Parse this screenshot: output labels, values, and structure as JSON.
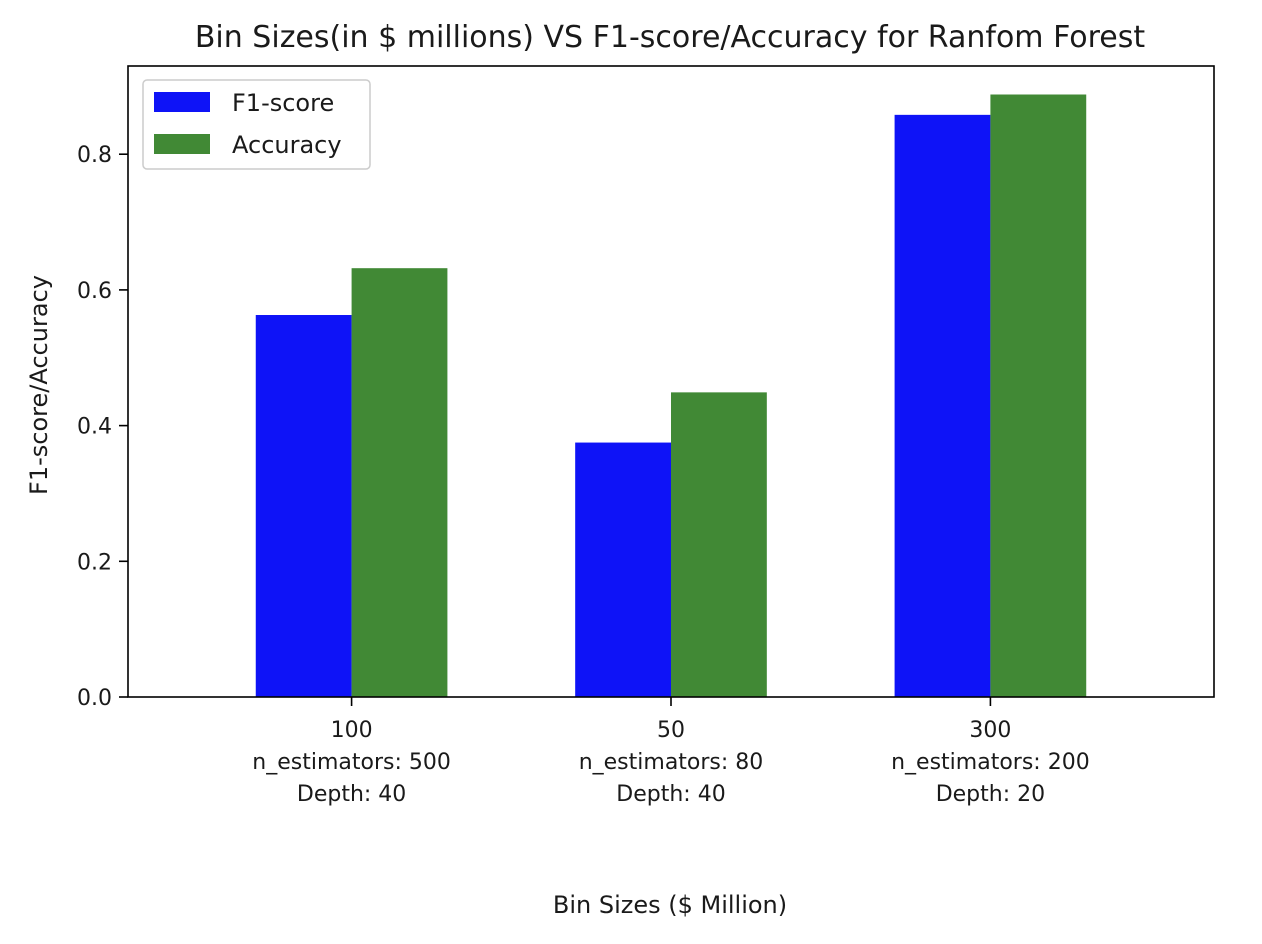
{
  "chart_data": {
    "type": "bar",
    "title": "Bin Sizes(in $ millions) VS F1-score/Accuracy for Ranfom Forest",
    "xlabel": "Bin Sizes ($ Million)",
    "ylabel": "F1-score/Accuracy",
    "categories": [
      [
        "100",
        "n_estimators: 500",
        "Depth: 40"
      ],
      [
        "50",
        "n_estimators: 80",
        "Depth: 40"
      ],
      [
        "300",
        "n_estimators: 200",
        "Depth: 20"
      ]
    ],
    "series": [
      {
        "name": "F1-score",
        "color": "#0e13f7",
        "values": [
          0.563,
          0.375,
          0.858
        ]
      },
      {
        "name": "Accuracy",
        "color": "#418935",
        "values": [
          0.632,
          0.449,
          0.888
        ]
      }
    ],
    "ylim": [
      0,
      0.93
    ],
    "yticks": [
      0.0,
      0.2,
      0.4,
      0.6,
      0.8
    ],
    "ytick_labels": [
      "0.0",
      "0.2",
      "0.4",
      "0.6",
      "0.8"
    ],
    "legend": "top-left",
    "grid": false
  }
}
